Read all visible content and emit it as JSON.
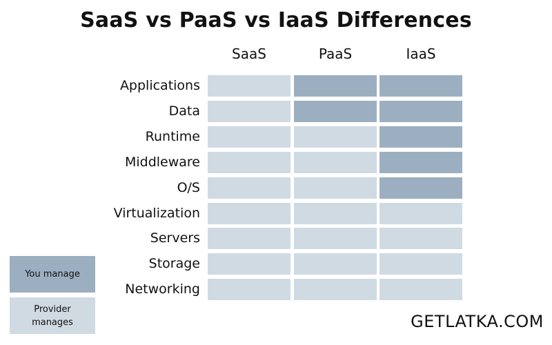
{
  "title": "SaaS vs PaaS vs IaaS Differences",
  "columns": [
    "SaaS",
    "PaaS",
    "IaaS"
  ],
  "rows": [
    "Applications",
    "Data",
    "Runtime",
    "Middleware",
    "O/S",
    "Virtualization",
    "Servers",
    "Storage",
    "Networking"
  ],
  "matrix": [
    [
      "provider",
      "you",
      "you"
    ],
    [
      "provider",
      "you",
      "you"
    ],
    [
      "provider",
      "provider",
      "you"
    ],
    [
      "provider",
      "provider",
      "you"
    ],
    [
      "provider",
      "provider",
      "you"
    ],
    [
      "provider",
      "provider",
      "provider"
    ],
    [
      "provider",
      "provider",
      "provider"
    ],
    [
      "provider",
      "provider",
      "provider"
    ],
    [
      "provider",
      "provider",
      "provider"
    ]
  ],
  "legend": {
    "you": "You manage",
    "provider_line1": "Provider",
    "provider_line2": "manages"
  },
  "colors": {
    "you": "#9cafc0",
    "provider": "#d0dae2"
  },
  "brand": "GETLATKA.COM"
}
